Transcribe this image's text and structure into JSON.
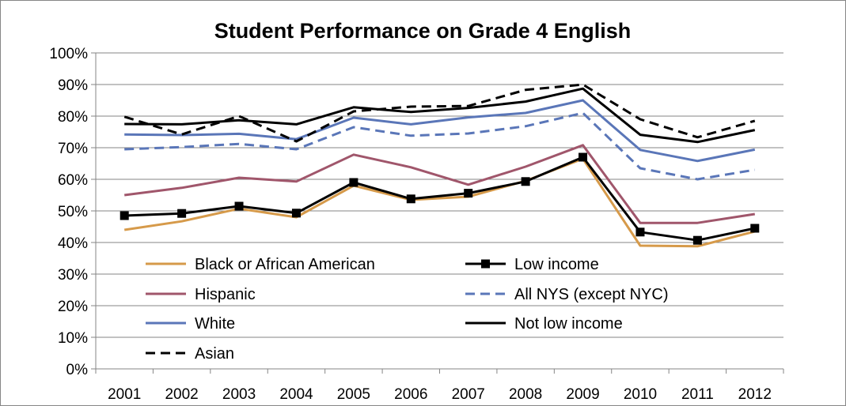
{
  "chart_data": {
    "type": "line",
    "title": "Student Performance on Grade 4 English",
    "xlabel": "",
    "ylabel": "",
    "x": [
      "2001",
      "2002",
      "2003",
      "2004",
      "2005",
      "2006",
      "2007",
      "2008",
      "2009",
      "2010",
      "2011",
      "2012"
    ],
    "ylim": [
      0,
      100
    ],
    "yticks": [
      "0%",
      "10%",
      "20%",
      "30%",
      "40%",
      "50%",
      "60%",
      "70%",
      "80%",
      "90%",
      "100%"
    ],
    "grid": true,
    "legend_position": "bottom-left inside plot",
    "series": [
      {
        "name": "Black or African American",
        "color": "#d69a4a",
        "style": "solid",
        "marker": "none",
        "values": [
          44,
          46.7,
          50.7,
          48,
          58,
          53.5,
          54.5,
          59.5,
          66.5,
          39,
          38.8,
          43.5
        ]
      },
      {
        "name": "Low income",
        "color": "#000000",
        "style": "solid",
        "marker": "square",
        "values": [
          48.5,
          49.2,
          51.5,
          49.3,
          59,
          53.8,
          55.6,
          59.3,
          67,
          43.3,
          40.7,
          44.5
        ]
      },
      {
        "name": "Hispanic",
        "color": "#a0566b",
        "style": "solid",
        "marker": "none",
        "values": [
          55,
          57.3,
          60.5,
          59.3,
          67.8,
          63.8,
          58.3,
          64,
          70.8,
          46.2,
          46.2,
          49
        ]
      },
      {
        "name": "All NYS (except NYC)",
        "color": "#5a76b8",
        "style": "dashed",
        "marker": "none",
        "values": [
          69.5,
          70.2,
          71.2,
          69.5,
          76.5,
          73.8,
          74.5,
          76.8,
          81,
          63.5,
          60,
          63
        ]
      },
      {
        "name": "White",
        "color": "#5a76b8",
        "style": "solid",
        "marker": "none",
        "values": [
          74.2,
          74,
          74.4,
          72.7,
          79.5,
          77.4,
          79.6,
          81,
          85,
          69.3,
          65.8,
          69.4
        ]
      },
      {
        "name": "Not low income",
        "color": "#000000",
        "style": "solid",
        "marker": "none",
        "values": [
          77.5,
          77.4,
          78.7,
          77.4,
          82.8,
          81.3,
          82.6,
          84.6,
          88.7,
          74.1,
          71.8,
          75.6
        ]
      },
      {
        "name": "Asian",
        "color": "#000000",
        "style": "dashed",
        "marker": "none",
        "values": [
          79.8,
          74.2,
          80,
          72,
          81.5,
          83,
          83.2,
          88.3,
          90,
          79,
          73.3,
          78.5
        ]
      }
    ]
  }
}
